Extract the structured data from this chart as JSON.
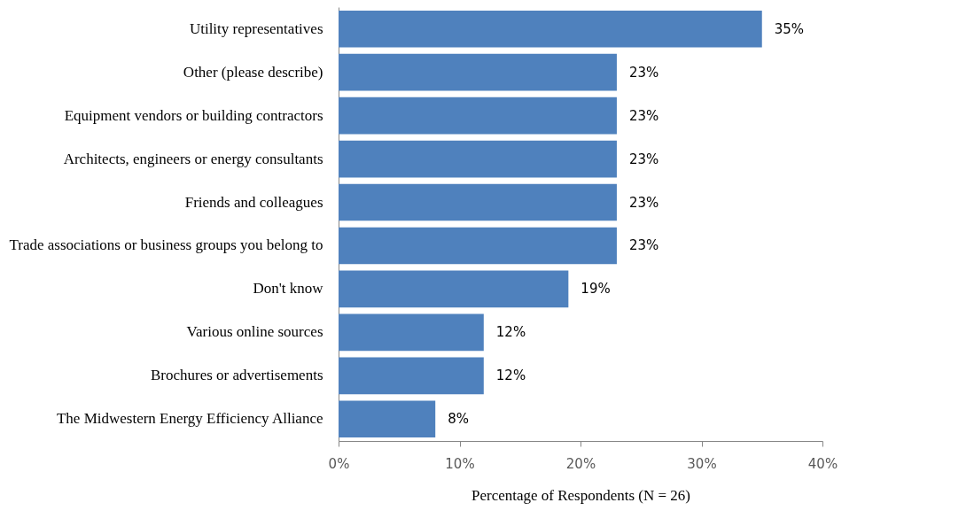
{
  "chart_data": {
    "type": "bar",
    "orientation": "horizontal",
    "xlabel": "Percentage of Respondents (N = 26)",
    "categories": [
      "Utility representatives",
      "Other (please describe)",
      "Equipment vendors or building contractors",
      "Architects, engineers or energy consultants",
      "Friends and colleagues",
      "Trade associations or business groups you belong to",
      "Don't know",
      "Various online sources",
      "Brochures or advertisements",
      "The Midwestern Energy Efficiency Alliance"
    ],
    "values": [
      35,
      23,
      23,
      23,
      23,
      23,
      19,
      12,
      12,
      8
    ],
    "value_labels": [
      "35%",
      "23%",
      "23%",
      "23%",
      "23%",
      "23%",
      "19%",
      "12%",
      "12%",
      "8%"
    ],
    "color": "#4f81bd",
    "xlim": [
      0,
      40
    ],
    "xticks": [
      {
        "value": 0,
        "label": "0%"
      },
      {
        "value": 10,
        "label": "10%"
      },
      {
        "value": 20,
        "label": "20%"
      },
      {
        "value": 30,
        "label": "30%"
      },
      {
        "value": 40,
        "label": "40%"
      }
    ],
    "grid": false
  }
}
